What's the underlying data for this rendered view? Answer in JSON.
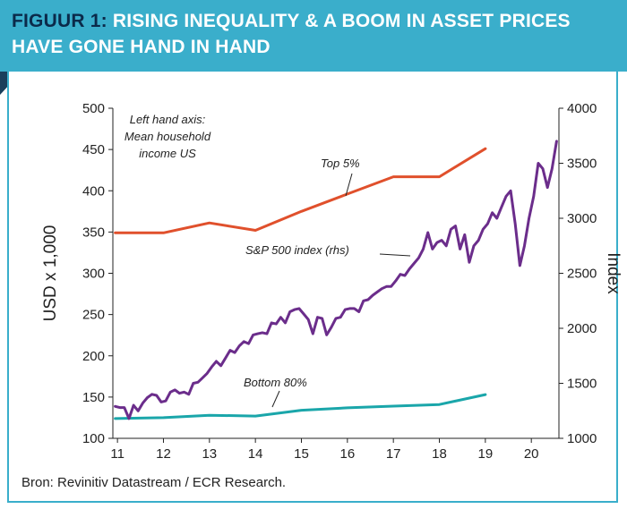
{
  "header": {
    "prefix": "FIGUUR 1:",
    "line1": "RISING INEQUALITY & A BOOM IN ASSET PRICES",
    "line2": "HAVE GONE HAND IN HAND"
  },
  "source": "Bron: Revinitiv Datastream / ECR Research.",
  "colors": {
    "header_bg": "#3aaecb",
    "top5": "#e0502c",
    "sp500": "#6b2d8b",
    "bottom80": "#1aa6aa"
  },
  "chart_data": {
    "type": "line",
    "xlabel": "",
    "ylabel_left": "USD x 1,000",
    "ylabel_right": "Index",
    "xlim": [
      10.9,
      20.6
    ],
    "ylim_left": [
      100,
      500
    ],
    "ylim_right": [
      1000,
      4000
    ],
    "x_ticks": [
      11,
      12,
      13,
      14,
      15,
      16,
      17,
      18,
      19,
      20
    ],
    "y_ticks_left": [
      100,
      150,
      200,
      250,
      300,
      350,
      400,
      450,
      500
    ],
    "y_ticks_right": [
      1000,
      1500,
      2000,
      2500,
      3000,
      3500,
      4000
    ],
    "annotations": {
      "left_axis_note": [
        "Left hand axis:",
        "Mean household",
        "income US"
      ],
      "top5_label": "Top 5%",
      "sp500_label": "S&P 500 index (rhs)",
      "bottom80_label": "Bottom 80%"
    },
    "series": [
      {
        "name": "Top 5%",
        "axis": "left",
        "x": [
          10.95,
          12,
          13,
          14,
          15,
          16,
          17,
          18,
          19
        ],
        "y": [
          349,
          349,
          361,
          352,
          375,
          396,
          417,
          417,
          451
        ]
      },
      {
        "name": "Bottom 80%",
        "axis": "left",
        "x": [
          10.95,
          12,
          13,
          14,
          15,
          16,
          17,
          18,
          19
        ],
        "y": [
          124,
          125,
          128,
          127,
          134,
          137,
          139,
          141,
          153
        ]
      },
      {
        "name": "S&P 500 index (rhs)",
        "axis": "right",
        "x": [
          10.95,
          11.05,
          11.15,
          11.25,
          11.35,
          11.45,
          11.55,
          11.65,
          11.75,
          11.85,
          11.95,
          12.05,
          12.15,
          12.25,
          12.35,
          12.45,
          12.55,
          12.65,
          12.75,
          12.85,
          12.95,
          13.05,
          13.15,
          13.25,
          13.35,
          13.45,
          13.55,
          13.65,
          13.75,
          13.85,
          13.95,
          14.05,
          14.15,
          14.25,
          14.35,
          14.45,
          14.55,
          14.65,
          14.75,
          14.85,
          14.95,
          15.05,
          15.15,
          15.25,
          15.35,
          15.45,
          15.55,
          15.65,
          15.75,
          15.85,
          15.95,
          16.05,
          16.15,
          16.25,
          16.35,
          16.45,
          16.55,
          16.65,
          16.75,
          16.85,
          16.95,
          17.05,
          17.15,
          17.25,
          17.35,
          17.45,
          17.55,
          17.65,
          17.75,
          17.85,
          17.95,
          18.05,
          18.15,
          18.25,
          18.35,
          18.45,
          18.55,
          18.65,
          18.75,
          18.85,
          18.95,
          19.05,
          19.15,
          19.25,
          19.35,
          19.45,
          19.55,
          19.65,
          19.75,
          19.85,
          19.95,
          20.05,
          20.15,
          20.25,
          20.35,
          20.45,
          20.55
        ],
        "y": [
          1290,
          1280,
          1280,
          1180,
          1300,
          1250,
          1320,
          1370,
          1400,
          1390,
          1330,
          1340,
          1420,
          1440,
          1410,
          1420,
          1400,
          1500,
          1510,
          1550,
          1590,
          1650,
          1700,
          1660,
          1730,
          1800,
          1780,
          1840,
          1880,
          1860,
          1940,
          1950,
          1960,
          1950,
          2050,
          2040,
          2100,
          2050,
          2150,
          2170,
          2180,
          2130,
          2080,
          1950,
          2100,
          2090,
          1940,
          2010,
          2090,
          2100,
          2170,
          2180,
          2180,
          2150,
          2250,
          2260,
          2300,
          2330,
          2360,
          2380,
          2380,
          2430,
          2490,
          2480,
          2540,
          2590,
          2640,
          2720,
          2870,
          2720,
          2780,
          2800,
          2750,
          2900,
          2930,
          2720,
          2850,
          2600,
          2750,
          2800,
          2900,
          2950,
          3050,
          3000,
          3100,
          3200,
          3250,
          2950,
          2570,
          2750,
          3000,
          3200,
          3500,
          3450,
          3280,
          3450,
          3700
        ]
      }
    ]
  }
}
